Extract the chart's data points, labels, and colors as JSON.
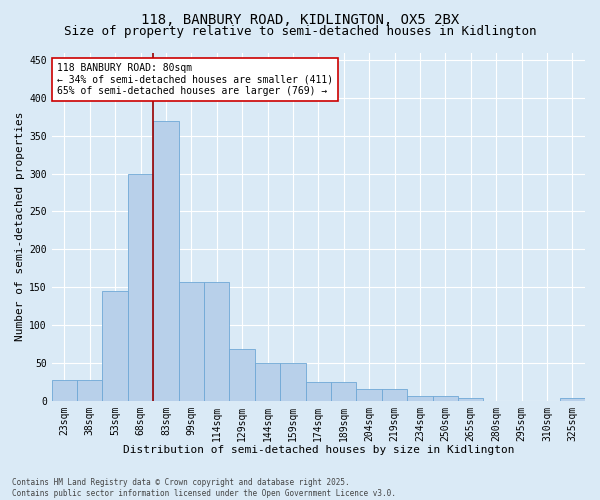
{
  "title1": "118, BANBURY ROAD, KIDLINGTON, OX5 2BX",
  "title2": "Size of property relative to semi-detached houses in Kidlington",
  "xlabel": "Distribution of semi-detached houses by size in Kidlington",
  "ylabel": "Number of semi-detached properties",
  "categories": [
    "23sqm",
    "38sqm",
    "53sqm",
    "68sqm",
    "83sqm",
    "99sqm",
    "114sqm",
    "129sqm",
    "144sqm",
    "159sqm",
    "174sqm",
    "189sqm",
    "204sqm",
    "219sqm",
    "234sqm",
    "250sqm",
    "265sqm",
    "280sqm",
    "295sqm",
    "310sqm",
    "325sqm"
  ],
  "values": [
    27,
    27,
    145,
    300,
    370,
    157,
    157,
    68,
    50,
    50,
    25,
    25,
    16,
    16,
    6,
    6,
    3,
    0,
    0,
    0,
    3
  ],
  "bar_color": "#b8d0ea",
  "bar_edge_color": "#6fa8d6",
  "bg_color": "#daeaf6",
  "grid_color": "#ffffff",
  "vline_color": "#990000",
  "vline_x_index": 4,
  "annotation_text": "118 BANBURY ROAD: 80sqm\n← 34% of semi-detached houses are smaller (411)\n65% of semi-detached houses are larger (769) →",
  "annotation_box_facecolor": "#ffffff",
  "annotation_box_edgecolor": "#cc0000",
  "footer": "Contains HM Land Registry data © Crown copyright and database right 2025.\nContains public sector information licensed under the Open Government Licence v3.0.",
  "ylim": [
    0,
    460
  ],
  "yticks": [
    0,
    50,
    100,
    150,
    200,
    250,
    300,
    350,
    400,
    450
  ],
  "title1_fontsize": 10,
  "title2_fontsize": 9,
  "tick_fontsize": 7,
  "ylabel_fontsize": 8,
  "xlabel_fontsize": 8,
  "annot_fontsize": 7,
  "footer_fontsize": 5.5
}
